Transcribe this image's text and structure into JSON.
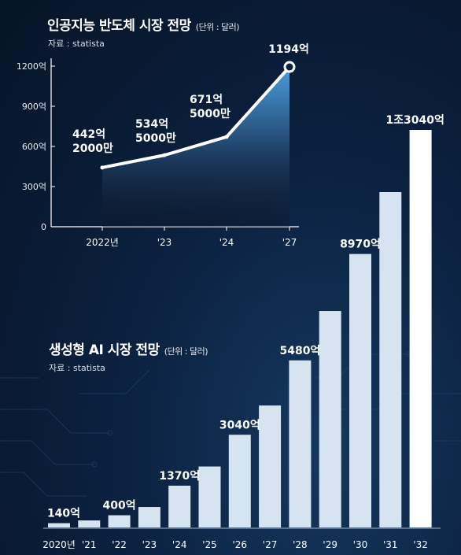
{
  "charts": [
    {
      "title": "인공지능 반도체 시장 전망",
      "unit": "(단위 : 달러)",
      "source": "자료 : statista"
    },
    {
      "title": "생성형 AI 시장 전망",
      "unit": "(단위 : 달러)",
      "source": "자료 : statista"
    }
  ],
  "colors": {
    "bar": "#d6e4f1",
    "bar_last": "#ffffff",
    "area_top": "#4a9cde",
    "line": "#ffffff"
  },
  "chart_data": [
    {
      "type": "area",
      "title": "인공지능 반도체 시장 전망",
      "unit": "(단위 : 달러)",
      "categories": [
        "2022년",
        "'23",
        "'24",
        "'27"
      ],
      "values": [
        442.2,
        534.5,
        671.5,
        1194
      ],
      "data_labels": [
        [
          "442억",
          "2000만"
        ],
        [
          "534억",
          "5000만"
        ],
        [
          "671억",
          "5000만"
        ],
        [
          "1194억"
        ]
      ],
      "y_ticks": [
        "0",
        "300억",
        "600억",
        "900억",
        "1200억"
      ],
      "ylim": [
        0,
        1200
      ],
      "grid": false
    },
    {
      "type": "bar",
      "title": "생성형 AI 시장 전망",
      "unit": "(단위 : 달러)",
      "categories": [
        "2020년",
        "'21",
        "'22",
        "'23",
        "'24",
        "'25",
        "'26",
        "'27",
        "'28",
        "'29",
        "'30",
        "'31",
        "'32"
      ],
      "values": [
        140,
        230,
        400,
        670,
        1370,
        2000,
        3040,
        4000,
        5480,
        7100,
        8970,
        11000,
        13040
      ],
      "data_labels": [
        "140억",
        "",
        "400억",
        "",
        "1370억",
        "",
        "3040억",
        "",
        "5480억",
        "",
        "8970억",
        "",
        "1조3040억"
      ],
      "ylim": [
        0,
        13040
      ],
      "grid": false
    }
  ]
}
